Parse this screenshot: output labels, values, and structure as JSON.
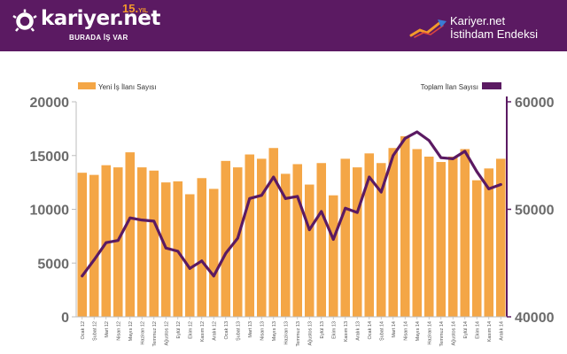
{
  "header": {
    "logo_text": "kariyer.net",
    "anniversary_number": "15.",
    "anniversary_unit": "YIL",
    "slogan": "BURADA İŞ VAR",
    "brand_line1": "Kariyer.net",
    "brand_line2": "İstihdam Endeksi",
    "background_color": "#5b1a62",
    "accent_color": "#f39a2b"
  },
  "chart_data": {
    "type": "bar",
    "categories": [
      "Ocak 12",
      "Şubat 12",
      "Mart 12",
      "Nisan 12",
      "Mayıs 12",
      "Haziran 12",
      "Temmuz 12",
      "Ağustos 12",
      "Eylül 12",
      "Ekim 12",
      "Kasım 12",
      "Aralık 12",
      "Ocak 13",
      "Şubat 13",
      "Mart 13",
      "Nisan 13",
      "Mayıs 13",
      "Haziran 13",
      "Temmuz 13",
      "Ağustos 13",
      "Eylül 13",
      "Ekim 13",
      "Kasım 13",
      "Aralık 13",
      "Ocak 14",
      "Şubat 14",
      "Mart 14",
      "Nisan 14",
      "Mayıs 14",
      "Haziran 14",
      "Temmuz 14",
      "Ağustos 14",
      "Eylül 14",
      "Ekim 14",
      "Kasım 14",
      "Aralık 14"
    ],
    "series": [
      {
        "name": "Yeni İş İlanı Sayısı",
        "type": "bar",
        "axis": "left",
        "color": "#f4a646",
        "values": [
          13400,
          13200,
          14100,
          13900,
          15300,
          13900,
          13600,
          12500,
          12600,
          11400,
          12900,
          11900,
          14500,
          13900,
          15100,
          14700,
          15700,
          13300,
          14200,
          12300,
          14300,
          11300,
          14700,
          13900,
          15200,
          14300,
          15700,
          16800,
          15600,
          14900,
          14400,
          14900,
          15600,
          12700,
          13800,
          14700
        ]
      },
      {
        "name": "Toplam İlan Sayısı",
        "type": "line",
        "axis": "right",
        "color": "#5b1a62",
        "values": [
          43800,
          45300,
          46900,
          47100,
          49200,
          49000,
          48900,
          46400,
          46100,
          44500,
          45200,
          43800,
          45900,
          47300,
          51000,
          51300,
          53000,
          51000,
          51200,
          48100,
          49800,
          47200,
          50100,
          49700,
          53000,
          51600,
          55000,
          56600,
          57200,
          56400,
          54800,
          54700,
          55400,
          53500,
          51900,
          52300
        ]
      }
    ],
    "y_left": {
      "min": 0,
      "max": 20000,
      "ticks": [
        0,
        5000,
        10000,
        15000,
        20000
      ]
    },
    "y_right": {
      "min": 40000,
      "max": 60000,
      "ticks": [
        40000,
        50000,
        60000
      ]
    },
    "grid": false,
    "legend_placement": "top"
  }
}
